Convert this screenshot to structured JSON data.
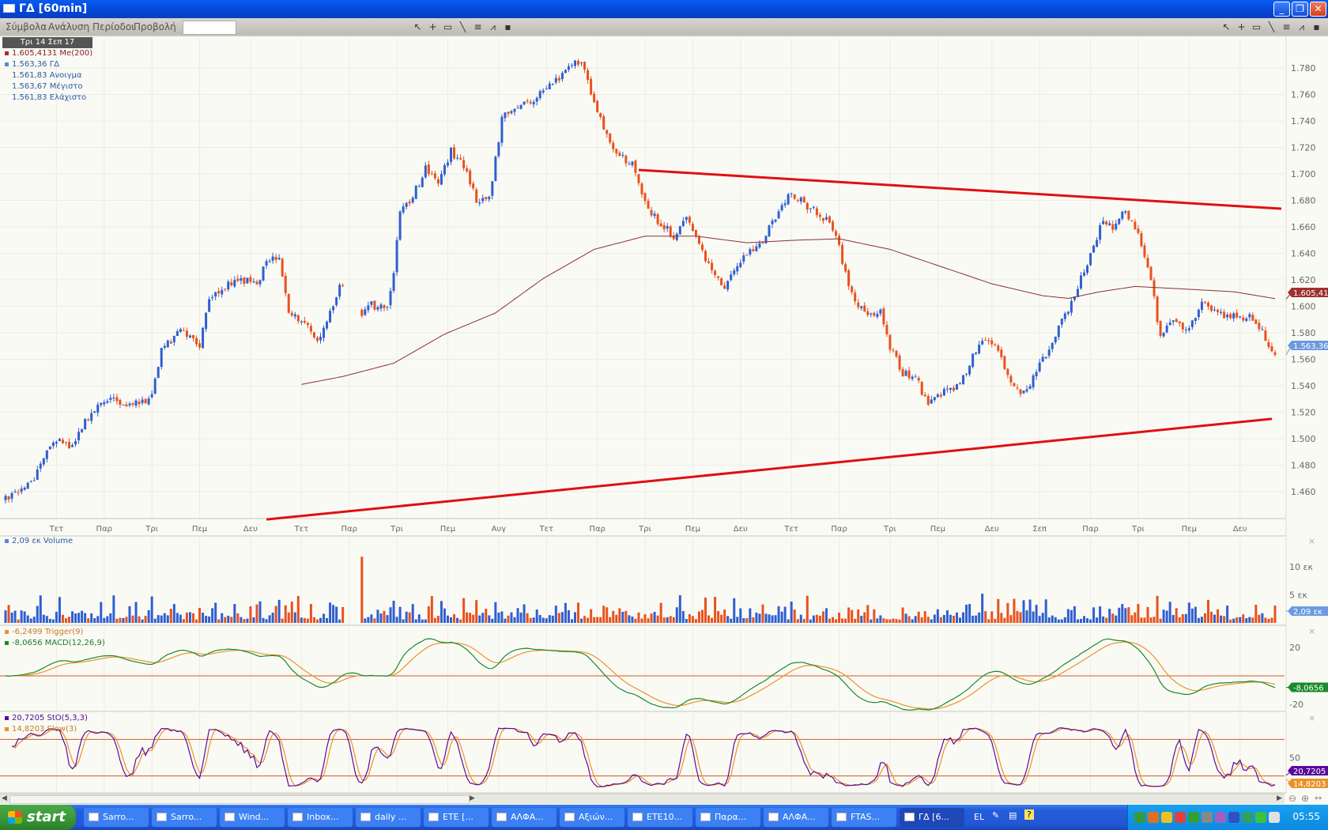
{
  "window": {
    "title": "ΓΔ [60min]"
  },
  "menu": [
    "Σύμβολα",
    "Ανάλυση",
    "Περίοδοι",
    "Προβολή"
  ],
  "symbol_input": {
    "value": ""
  },
  "toolbar_icons": [
    "pointer-icon",
    "crosshair-icon",
    "rectangle-icon",
    "line-icon",
    "grid-icon",
    "chart-icon",
    "save-icon"
  ],
  "legend": {
    "date": "Τρι 14 Σεπ 17",
    "ma": "1.605,4131 Me(200)",
    "last": "1.563,36 ΓΔ",
    "open": "1.561,83 Ανοιγμα",
    "high": "1.563,67 Μέγιστο",
    "low": "1.561,83 Ελάχιστο"
  },
  "volume_legend": "2,09 εκ Volume",
  "macd_legend": {
    "trigger": "-6,2499 Trigger(9)",
    "macd": "-8,0656 MACD(12,26,9)"
  },
  "stoch_legend": {
    "sto": "20,7205 StO(5,3,3)",
    "slow": "14,8203 Slow(3)"
  },
  "colors": {
    "up": "#2f5fd0",
    "down": "#e8521e",
    "ma": "#8a3030",
    "trend": "#e01010",
    "macd": "#1a8a2a",
    "trigger": "#e8932a",
    "sto": "#5a0a9a",
    "slow": "#e8932a",
    "level": "#d05a20"
  },
  "chart_data": {
    "type": "candlestick",
    "bars": 400,
    "y_range": [
      1440,
      1795
    ],
    "y_tick_labels": [
      "1.460",
      "1.480",
      "1.500",
      "1.520",
      "1.540",
      "1.560",
      "1.580",
      "1.600",
      "1.620",
      "1.640",
      "1.660",
      "1.680",
      "1.700",
      "1.720",
      "1.740",
      "1.760",
      "1.780"
    ],
    "y_ticks": [
      1460,
      1480,
      1500,
      1520,
      1540,
      1560,
      1580,
      1600,
      1620,
      1640,
      1660,
      1680,
      1700,
      1720,
      1740,
      1760,
      1780
    ],
    "x_ticks": [
      {
        "label": "Τετ",
        "bar": 16
      },
      {
        "label": "Παρ",
        "bar": 31
      },
      {
        "label": "Τρι",
        "bar": 46
      },
      {
        "label": "Πεμ",
        "bar": 61
      },
      {
        "label": "Δευ",
        "bar": 77
      },
      {
        "label": "Τετ",
        "bar": 93
      },
      {
        "label": "Παρ",
        "bar": 108
      },
      {
        "label": "Τρι",
        "bar": 123
      },
      {
        "label": "Πεμ",
        "bar": 139
      },
      {
        "label": "Αυγ",
        "bar": 155
      },
      {
        "label": "Τετ",
        "bar": 170
      },
      {
        "label": "Παρ",
        "bar": 186
      },
      {
        "label": "Τρι",
        "bar": 201
      },
      {
        "label": "Πεμ",
        "bar": 216
      },
      {
        "label": "Δευ",
        "bar": 231
      },
      {
        "label": "Τετ",
        "bar": 247
      },
      {
        "label": "Παρ",
        "bar": 262
      },
      {
        "label": "Τρι",
        "bar": 278
      },
      {
        "label": "Πεμ",
        "bar": 293
      },
      {
        "label": "Δευ",
        "bar": 310
      },
      {
        "label": "Σεπ",
        "bar": 325
      },
      {
        "label": "Παρ",
        "bar": 341
      },
      {
        "label": "Τρι",
        "bar": 356
      },
      {
        "label": "Πεμ",
        "bar": 372
      },
      {
        "label": "Δευ",
        "bar": 388
      }
    ],
    "close_path": [
      [
        1,
        1454
      ],
      [
        8,
        1467
      ],
      [
        15,
        1499
      ],
      [
        21,
        1493
      ],
      [
        25,
        1512
      ],
      [
        32,
        1531
      ],
      [
        40,
        1525
      ],
      [
        46,
        1531
      ],
      [
        49,
        1569
      ],
      [
        56,
        1582
      ],
      [
        61,
        1569
      ],
      [
        64,
        1608
      ],
      [
        69,
        1615
      ],
      [
        74,
        1621
      ],
      [
        79,
        1615
      ],
      [
        82,
        1637
      ],
      [
        86,
        1634
      ],
      [
        89,
        1595
      ],
      [
        94,
        1589
      ],
      [
        98,
        1573
      ],
      [
        102,
        1595
      ],
      [
        105,
        1617
      ],
      [
        107,
        1614
      ],
      [
        112,
        1592
      ],
      [
        115,
        1601
      ],
      [
        120,
        1598
      ],
      [
        122,
        1627
      ],
      [
        124,
        1672
      ],
      [
        127,
        1678
      ],
      [
        132,
        1704
      ],
      [
        136,
        1694
      ],
      [
        140,
        1717
      ],
      [
        144,
        1707
      ],
      [
        148,
        1681
      ],
      [
        152,
        1681
      ],
      [
        156,
        1742
      ],
      [
        161,
        1749
      ],
      [
        167,
        1758
      ],
      [
        172,
        1768
      ],
      [
        177,
        1781
      ],
      [
        181,
        1787
      ],
      [
        185,
        1752
      ],
      [
        191,
        1717
      ],
      [
        197,
        1707
      ],
      [
        201,
        1678
      ],
      [
        205,
        1665
      ],
      [
        210,
        1653
      ],
      [
        214,
        1665
      ],
      [
        218,
        1646
      ],
      [
        222,
        1627
      ],
      [
        226,
        1614
      ],
      [
        230,
        1630
      ],
      [
        233,
        1640
      ],
      [
        237,
        1646
      ],
      [
        240,
        1659
      ],
      [
        244,
        1678
      ],
      [
        247,
        1685
      ],
      [
        253,
        1674
      ],
      [
        258,
        1665
      ],
      [
        261,
        1653
      ],
      [
        263,
        1634
      ],
      [
        267,
        1601
      ],
      [
        271,
        1595
      ],
      [
        275,
        1595
      ],
      [
        278,
        1569
      ],
      [
        282,
        1550
      ],
      [
        286,
        1547
      ],
      [
        290,
        1525
      ],
      [
        294,
        1534
      ],
      [
        298,
        1538
      ],
      [
        302,
        1550
      ],
      [
        304,
        1563
      ],
      [
        308,
        1576
      ],
      [
        312,
        1569
      ],
      [
        316,
        1541
      ],
      [
        320,
        1534
      ],
      [
        324,
        1550
      ],
      [
        328,
        1569
      ],
      [
        332,
        1589
      ],
      [
        336,
        1608
      ],
      [
        341,
        1640
      ],
      [
        345,
        1665
      ],
      [
        348,
        1659
      ],
      [
        351,
        1674
      ],
      [
        355,
        1659
      ],
      [
        357,
        1646
      ],
      [
        360,
        1621
      ],
      [
        363,
        1576
      ],
      [
        367,
        1589
      ],
      [
        371,
        1582
      ],
      [
        376,
        1601
      ],
      [
        381,
        1595
      ],
      [
        386,
        1592
      ],
      [
        392,
        1592
      ],
      [
        396,
        1576
      ],
      [
        399,
        1563.36
      ]
    ],
    "ma200": {
      "name": "Me(200)",
      "path": [
        [
          93,
          1541
        ],
        [
          106,
          1547
        ],
        [
          122,
          1557
        ],
        [
          138,
          1579
        ],
        [
          154,
          1595
        ],
        [
          169,
          1621
        ],
        [
          185,
          1643
        ],
        [
          201,
          1653
        ],
        [
          217,
          1653
        ],
        [
          233,
          1648
        ],
        [
          249,
          1650
        ],
        [
          262,
          1651
        ],
        [
          278,
          1643
        ],
        [
          294,
          1630
        ],
        [
          310,
          1617
        ],
        [
          326,
          1608
        ],
        [
          334,
          1606
        ],
        [
          344,
          1611
        ],
        [
          355,
          1615
        ],
        [
          371,
          1613
        ],
        [
          386,
          1611
        ],
        [
          400,
          1605.41
        ]
      ],
      "last_label": "1.605,413"
    },
    "last_price_label": "1.563,36",
    "trendlines": [
      {
        "from": [
          199,
          1703
        ],
        "to": [
          401,
          1673.7
        ]
      },
      {
        "from": [
          82,
          1439
        ],
        "to": [
          398,
          1515
        ]
      }
    ],
    "volume": {
      "y_tick_labels": [
        "5 εκ",
        "10 εκ"
      ],
      "y_ticks": [
        5,
        10
      ],
      "last_label": "2,09 εκ",
      "spike": {
        "bar": 112,
        "value": 11.8
      }
    },
    "macd": {
      "params": [
        12,
        26,
        9
      ],
      "y_tick_labels": [
        "20",
        "-20"
      ],
      "y_ticks": [
        20,
        -20
      ],
      "last_label": "-8,0656"
    },
    "stochastic": {
      "params": [
        5,
        3,
        3
      ],
      "levels": [
        20,
        80
      ],
      "y_tick_labels": [
        "50"
      ],
      "y_ticks": [
        50
      ],
      "last_label": "20,7205",
      "slow_label": "14,8203"
    }
  },
  "taskbar": {
    "start": "start",
    "items": [
      {
        "label": "Sarro...",
        "icon": "keyboard-icon"
      },
      {
        "label": "Sarro...",
        "icon": "globe-icon"
      },
      {
        "label": "Wind...",
        "icon": "messenger-icon"
      },
      {
        "label": "Inbox...",
        "icon": "mail-icon"
      },
      {
        "label": "daily ...",
        "icon": "word-icon"
      },
      {
        "label": "ETE [...",
        "icon": "chart-icon"
      },
      {
        "label": "ΑΛΦΑ...",
        "icon": "search-icon"
      },
      {
        "label": "Αξιών...",
        "icon": "monitor-icon"
      },
      {
        "label": "ETE10...",
        "icon": "search-icon"
      },
      {
        "label": "Παρα...",
        "icon": "monitor-icon"
      },
      {
        "label": "ΑΛΦΑ...",
        "icon": "chart-icon"
      },
      {
        "label": "FTAS...",
        "icon": "chart-icon"
      },
      {
        "label": "ΓΔ [6...",
        "icon": "chart-icon",
        "active": true
      }
    ],
    "language": "EL",
    "clock": "05:55"
  }
}
